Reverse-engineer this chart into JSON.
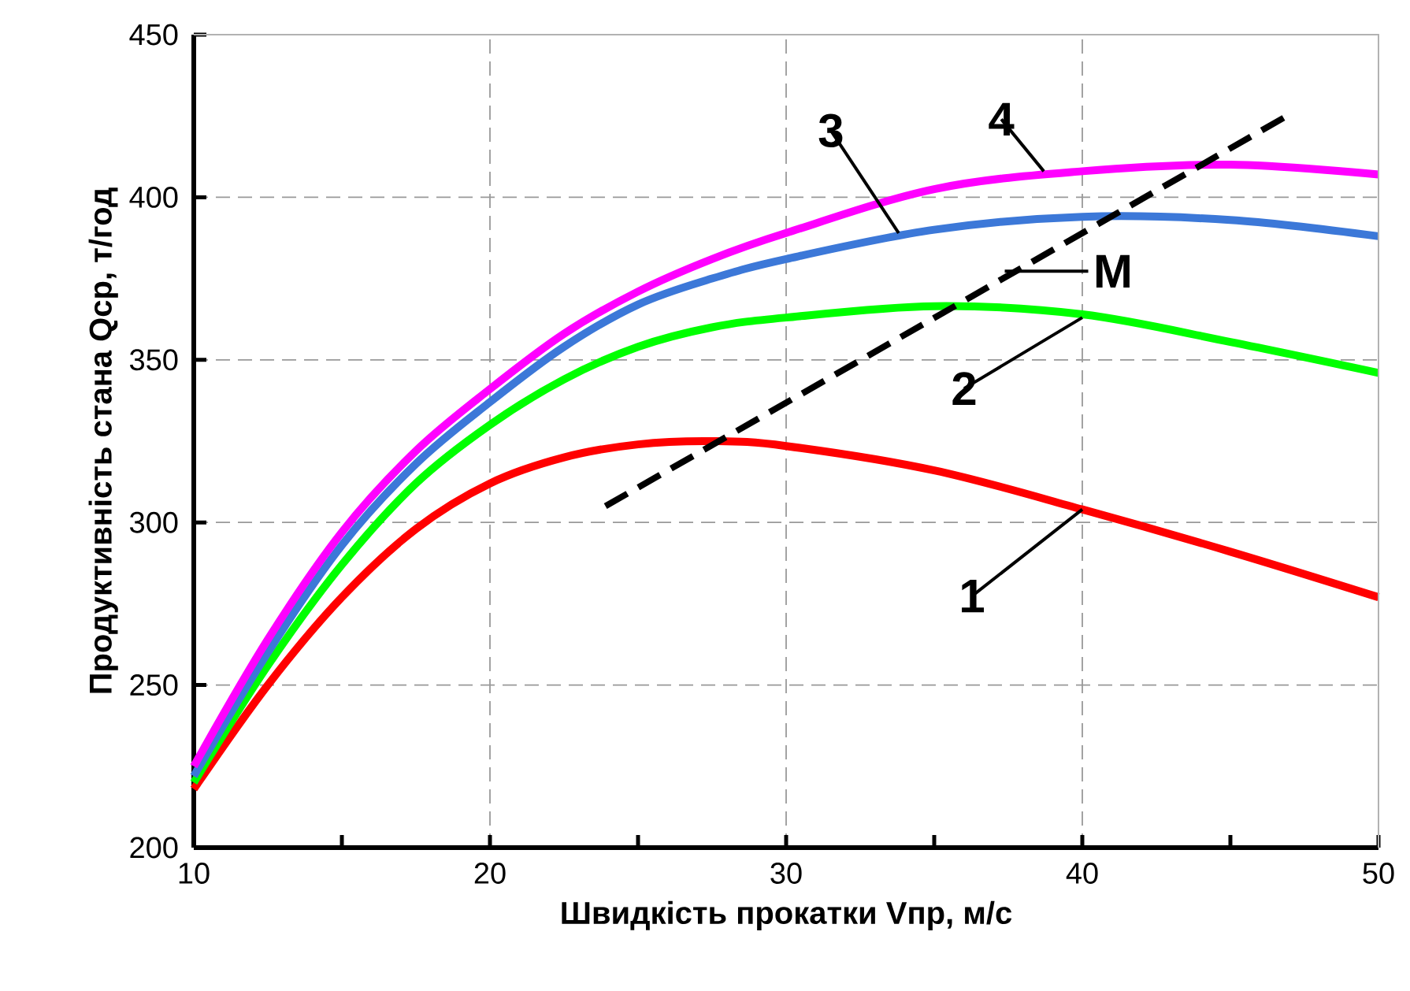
{
  "chart_data": {
    "type": "line",
    "xlabel": "Швидкість прокатки Vпр, м/с",
    "ylabel": "Продуктивність стана Qср, т/год",
    "xlim": [
      10,
      50
    ],
    "ylim": [
      200,
      450
    ],
    "xticks": [
      10,
      {
        "value": 15,
        "label": null
      },
      20,
      {
        "value": 25,
        "label": null
      },
      30,
      {
        "value": 35,
        "label": null
      },
      40,
      {
        "value": 45,
        "label": null
      },
      50
    ],
    "yticks": [
      200,
      250,
      300,
      350,
      400,
      450
    ],
    "grid": true,
    "x": [
      10,
      12.5,
      15,
      17.5,
      20,
      22.5,
      25,
      27.5,
      30,
      35,
      40,
      45,
      50
    ],
    "series": [
      {
        "color": "#ff0000",
        "values": [
          218,
          250,
          277,
          298,
          312,
          320,
          324,
          325,
          323.5,
          316,
          304,
          291,
          277
        ]
      },
      {
        "color": "#00ff00",
        "values": [
          220,
          256,
          287,
          312,
          330,
          344,
          354,
          360,
          363,
          366.5,
          364,
          355.5,
          346
        ]
      },
      {
        "color": "#3c78d8",
        "values": [
          222,
          260,
          293,
          318,
          337,
          354,
          367,
          375,
          381,
          390,
          394,
          393,
          388
        ]
      },
      {
        "color": "#ff00ff",
        "values": [
          225,
          264,
          297,
          322,
          341,
          358,
          371,
          381,
          389,
          402.5,
          408,
          410,
          407
        ]
      },
      {
        "type": "line",
        "color": "#000000",
        "line_style": "dashed",
        "x": [
          23.9,
          47.1
        ],
        "values": [
          305,
          426
        ]
      }
    ],
    "annotations": [
      {
        "text": "1",
        "x": 40,
        "y": 304
      },
      {
        "text": "2",
        "x": 40,
        "y": 363
      },
      {
        "text": "3",
        "x": 33.8,
        "y": 389
      },
      {
        "text": "4",
        "x": 38.7,
        "y": 408
      },
      "M"
    ]
  }
}
